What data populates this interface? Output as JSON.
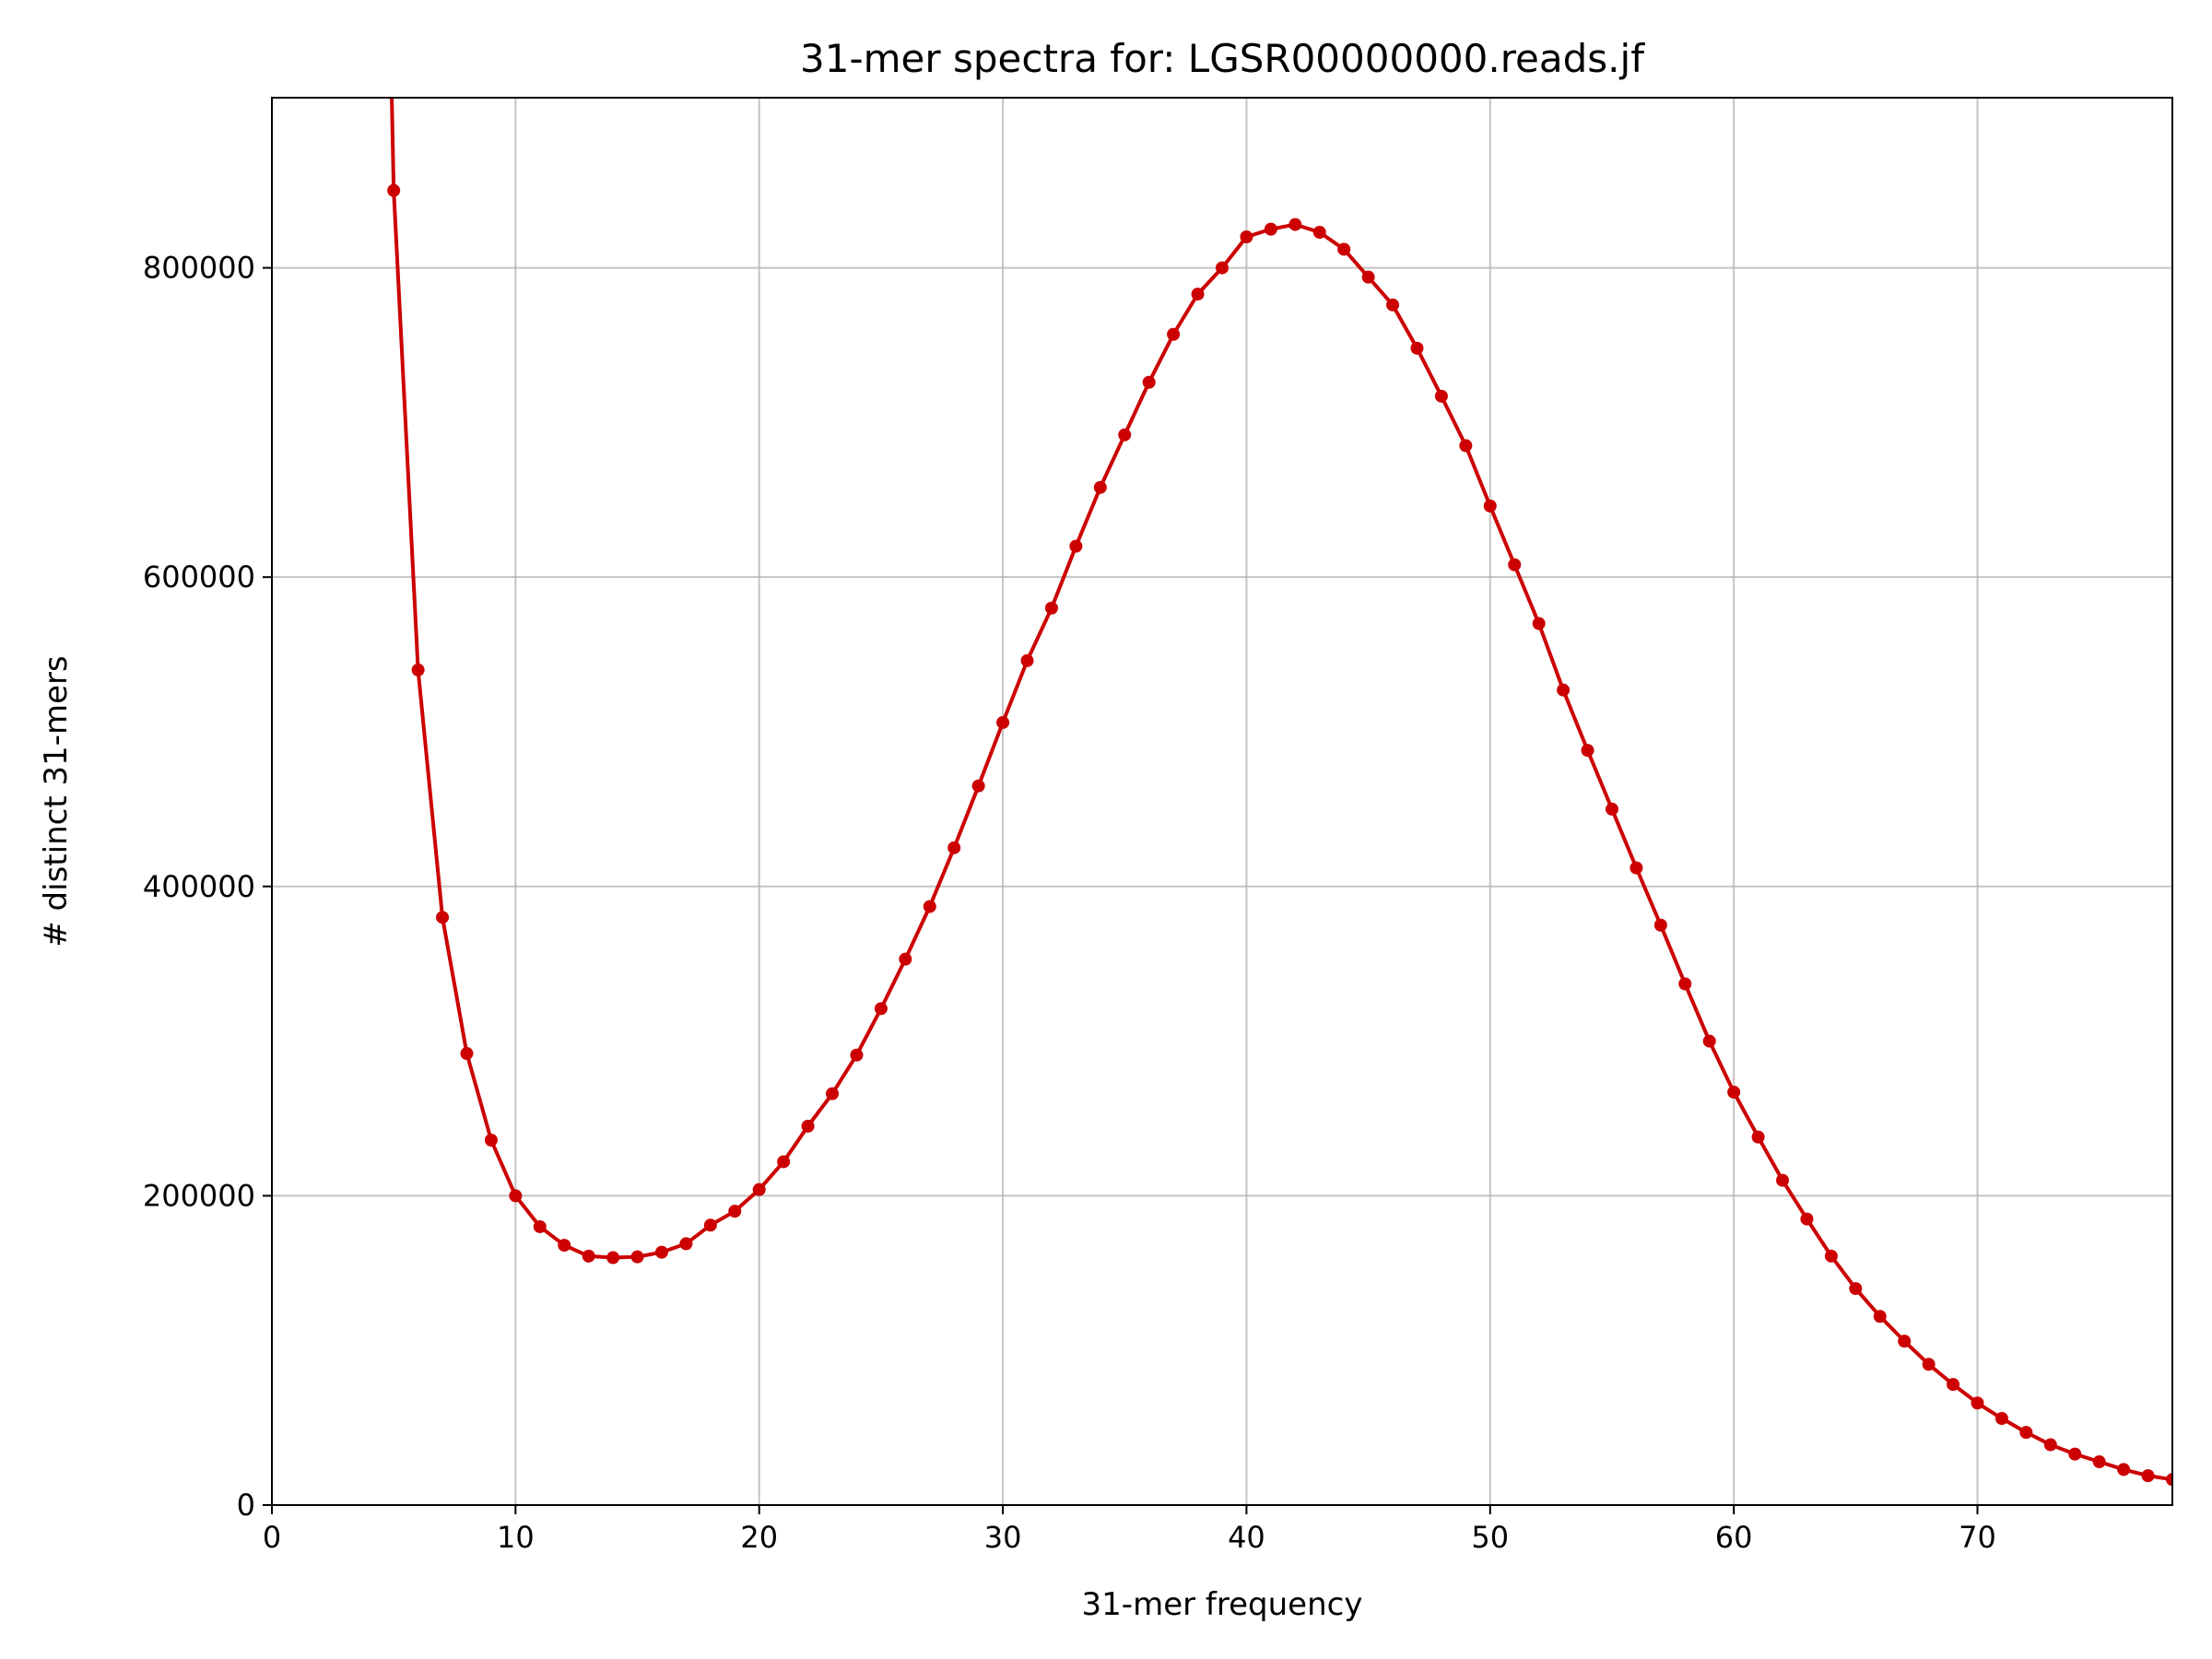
{
  "chart_data": {
    "type": "line",
    "title": "31-mer spectra for: LGSR00000000.reads.jf",
    "xlabel": "31-mer frequency",
    "ylabel": "# distinct 31-mers",
    "xlim": [
      0,
      78
    ],
    "ylim": [
      0,
      910000
    ],
    "xticks": [
      0,
      10,
      20,
      30,
      40,
      50,
      60,
      70
    ],
    "yticks": [
      0,
      200000,
      400000,
      600000,
      800000
    ],
    "xtick_labels": [
      "0",
      "10",
      "20",
      "30",
      "40",
      "50",
      "60",
      "70"
    ],
    "ytick_labels": [
      "0",
      "200000",
      "400000",
      "600000",
      "800000"
    ],
    "grid": true,
    "legend": "none",
    "colors": {
      "line": "#cc0000",
      "marker": "#cc0000",
      "grid": "#b0b0b0",
      "axes": "#000000",
      "background": "#ffffff"
    },
    "series": [
      {
        "x": [
          4,
          5,
          6,
          7,
          8,
          9,
          10,
          11,
          12,
          13,
          14,
          15,
          16,
          17,
          18,
          19,
          20,
          21,
          22,
          23,
          24,
          25,
          26,
          27,
          28,
          29,
          30,
          31,
          32,
          33,
          34,
          35,
          36,
          37,
          38,
          39,
          40,
          41,
          42,
          43,
          44,
          45,
          46,
          47,
          48,
          49,
          50,
          51,
          52,
          53,
          54,
          55,
          56,
          57,
          58,
          59,
          60,
          61,
          62,
          63,
          64,
          65,
          66,
          67,
          68,
          69,
          70,
          71,
          72,
          73,
          74,
          75,
          76,
          77,
          78
        ],
        "y": [
          1600000,
          850000,
          540000,
          380000,
          292000,
          236000,
          200000,
          180000,
          168000,
          161000,
          160000,
          160500,
          163500,
          169000,
          181000,
          190000,
          204000,
          222000,
          245000,
          266000,
          291000,
          321000,
          353000,
          387000,
          425000,
          465000,
          506000,
          546000,
          580000,
          620000,
          658000,
          692000,
          726000,
          757000,
          783000,
          800000,
          820000,
          825000,
          828000,
          823000,
          812000,
          794000,
          776000,
          748000,
          717000,
          685000,
          646000,
          608000,
          570000,
          527000,
          488000,
          450000,
          412000,
          375000,
          337000,
          300000,
          267000,
          238000,
          210000,
          185000,
          161000,
          140000,
          122000,
          106000,
          91000,
          78000,
          66000,
          56000,
          47000,
          39000,
          33000,
          28000,
          23000,
          19000,
          16500
        ],
        "marker_start_index": 1
      }
    ]
  }
}
